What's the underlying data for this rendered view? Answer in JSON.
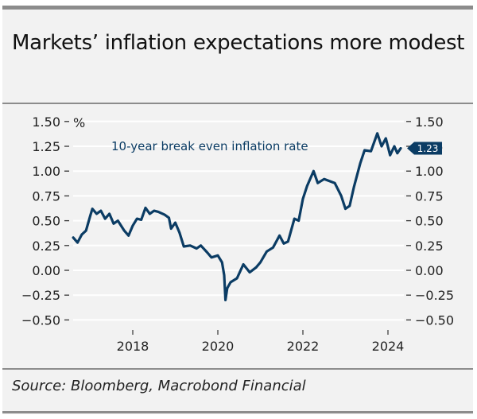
{
  "header": {
    "title": "Markets’ inflation expectations more modest"
  },
  "footer": {
    "source": "Source: Bloomberg, Macrobond Financial"
  },
  "colors": {
    "panel_bg": "#f2f2f2",
    "gridline": "#ffffff",
    "border": "#8c8c8c",
    "series": "#0b3c64",
    "text": "#222222"
  },
  "chart_data": {
    "type": "line",
    "title": "Markets’ inflation expectations more modest",
    "xlabel": "",
    "ylabel": "%",
    "ylim": [
      -0.5,
      1.5
    ],
    "xlim": [
      2016.4,
      2024.6
    ],
    "y_ticks": [
      1.5,
      1.25,
      1.0,
      0.75,
      0.5,
      0.25,
      0.0,
      -0.25,
      -0.5
    ],
    "y_tick_labels": [
      "1.50",
      "1.25",
      "1.00",
      "0.75",
      "0.50",
      "0.25",
      "0.00",
      "−0.25",
      "−0.50"
    ],
    "x_ticks": [
      2018,
      2020,
      2022,
      2024
    ],
    "x_tick_labels": [
      "2018",
      "2020",
      "2022",
      "2024"
    ],
    "grid": true,
    "dual_y_axis": true,
    "annotation": "10-year break even inflation rate",
    "last_value_label": "1.23",
    "series": [
      {
        "name": "10-year break even inflation rate",
        "x": [
          2016.6,
          2016.7,
          2016.8,
          2016.9,
          2017.0,
          2017.05,
          2017.15,
          2017.25,
          2017.35,
          2017.45,
          2017.55,
          2017.65,
          2017.8,
          2017.9,
          2018.0,
          2018.1,
          2018.2,
          2018.3,
          2018.4,
          2018.5,
          2018.6,
          2018.75,
          2018.85,
          2018.9,
          2019.0,
          2019.1,
          2019.2,
          2019.35,
          2019.5,
          2019.6,
          2019.75,
          2019.85,
          2020.0,
          2020.1,
          2020.15,
          2020.18,
          2020.22,
          2020.3,
          2020.45,
          2020.6,
          2020.75,
          2020.9,
          2021.0,
          2021.15,
          2021.3,
          2021.45,
          2021.55,
          2021.65,
          2021.8,
          2021.9,
          2022.0,
          2022.1,
          2022.25,
          2022.35,
          2022.5,
          2022.75,
          2022.9,
          2023.0,
          2023.1,
          2023.2,
          2023.35,
          2023.45,
          2023.6,
          2023.75,
          2023.85,
          2023.95,
          2024.05,
          2024.15,
          2024.22,
          2024.3
        ],
        "values": [
          0.33,
          0.28,
          0.36,
          0.4,
          0.55,
          0.62,
          0.57,
          0.6,
          0.52,
          0.57,
          0.47,
          0.5,
          0.4,
          0.35,
          0.45,
          0.52,
          0.51,
          0.63,
          0.57,
          0.6,
          0.59,
          0.56,
          0.53,
          0.42,
          0.48,
          0.38,
          0.24,
          0.25,
          0.22,
          0.25,
          0.18,
          0.13,
          0.15,
          0.08,
          -0.05,
          -0.3,
          -0.18,
          -0.12,
          -0.08,
          0.06,
          -0.02,
          0.03,
          0.08,
          0.19,
          0.23,
          0.35,
          0.27,
          0.29,
          0.52,
          0.5,
          0.72,
          0.85,
          1.0,
          0.88,
          0.92,
          0.88,
          0.75,
          0.62,
          0.65,
          0.84,
          1.08,
          1.21,
          1.2,
          1.38,
          1.25,
          1.33,
          1.16,
          1.25,
          1.18,
          1.23
        ]
      }
    ]
  }
}
